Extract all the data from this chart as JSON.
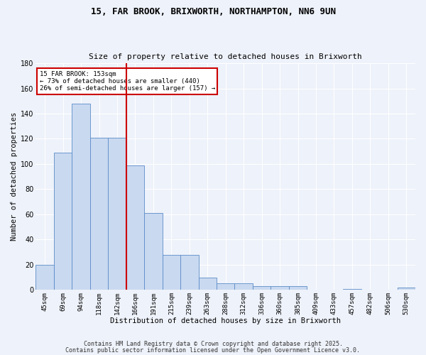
{
  "title1": "15, FAR BROOK, BRIXWORTH, NORTHAMPTON, NN6 9UN",
  "title2": "Size of property relative to detached houses in Brixworth",
  "xlabel": "Distribution of detached houses by size in Brixworth",
  "ylabel": "Number of detached properties",
  "categories": [
    "45sqm",
    "69sqm",
    "94sqm",
    "118sqm",
    "142sqm",
    "166sqm",
    "191sqm",
    "215sqm",
    "239sqm",
    "263sqm",
    "288sqm",
    "312sqm",
    "336sqm",
    "360sqm",
    "385sqm",
    "409sqm",
    "433sqm",
    "457sqm",
    "482sqm",
    "506sqm",
    "530sqm"
  ],
  "values": [
    20,
    109,
    148,
    121,
    121,
    99,
    61,
    28,
    28,
    10,
    5,
    5,
    3,
    3,
    3,
    0,
    0,
    1,
    0,
    0,
    2
  ],
  "bar_color": "#c9d9f0",
  "bar_edge_color": "#5b8cc8",
  "vline_x": 4.5,
  "vline_color": "#cc0000",
  "annotation_text": "15 FAR BROOK: 153sqm\n← 73% of detached houses are smaller (440)\n26% of semi-detached houses are larger (157) →",
  "footer1": "Contains HM Land Registry data © Crown copyright and database right 2025.",
  "footer2": "Contains public sector information licensed under the Open Government Licence v3.0.",
  "bg_color": "#eef2fa",
  "grid_color": "#ffffff",
  "ylim": [
    0,
    180
  ],
  "yticks": [
    0,
    20,
    40,
    60,
    80,
    100,
    120,
    140,
    160,
    180
  ]
}
